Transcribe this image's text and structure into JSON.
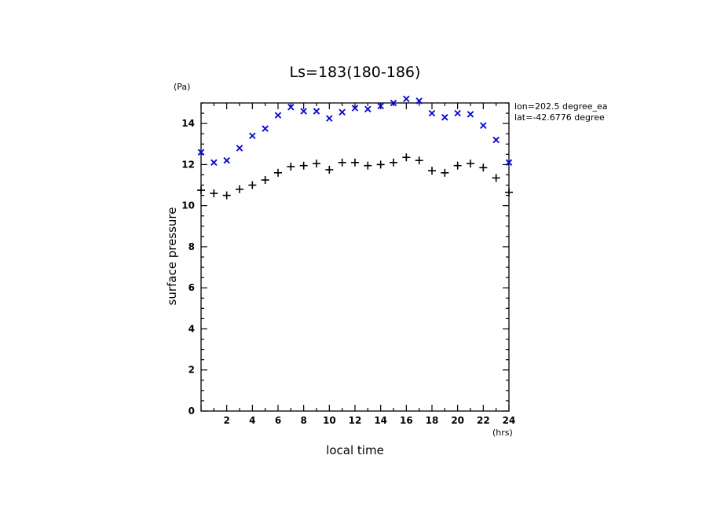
{
  "chart_data": {
    "type": "scatter",
    "title": "Ls=183(180-186)",
    "xlabel": "local time",
    "xunit": "(hrs)",
    "ylabel": "surface pressure",
    "yunit": "(Pa)",
    "xlim": [
      0,
      24
    ],
    "ylim": [
      0,
      15
    ],
    "xticks": [
      "2",
      "4",
      "6",
      "8",
      "10",
      "12",
      "14",
      "16",
      "18",
      "20",
      "22",
      "24"
    ],
    "yticks": [
      "0",
      "2",
      "4",
      "6",
      "8",
      "10",
      "12",
      "14"
    ],
    "annotations": [
      "lon=202.5 degree_ea",
      "lat=-42.6776 degree"
    ],
    "series": [
      {
        "marker": "x",
        "color": "#0000ff",
        "x": [
          0,
          1,
          2,
          3,
          4,
          5,
          6,
          7,
          8,
          9,
          10,
          11,
          12,
          13,
          14,
          15,
          16,
          17,
          18,
          19,
          20,
          21,
          22,
          23,
          24
        ],
        "y": [
          12.6,
          12.1,
          12.2,
          12.8,
          13.4,
          13.75,
          14.4,
          14.8,
          14.6,
          14.6,
          14.25,
          14.55,
          14.75,
          14.7,
          14.85,
          15.0,
          15.2,
          15.1,
          14.5,
          14.3,
          14.5,
          14.45,
          13.9,
          13.2,
          12.1
        ]
      },
      {
        "marker": "+",
        "color": "#000000",
        "x": [
          0,
          1,
          2,
          3,
          4,
          5,
          6,
          7,
          8,
          9,
          10,
          11,
          12,
          13,
          14,
          15,
          16,
          17,
          18,
          19,
          20,
          21,
          22,
          23,
          24
        ],
        "y": [
          10.75,
          10.6,
          10.5,
          10.8,
          11.0,
          11.25,
          11.6,
          11.9,
          11.95,
          12.05,
          11.75,
          12.1,
          12.1,
          11.95,
          12.0,
          12.1,
          12.35,
          12.2,
          11.7,
          11.6,
          11.95,
          12.05,
          11.85,
          11.35,
          10.65
        ]
      }
    ]
  }
}
